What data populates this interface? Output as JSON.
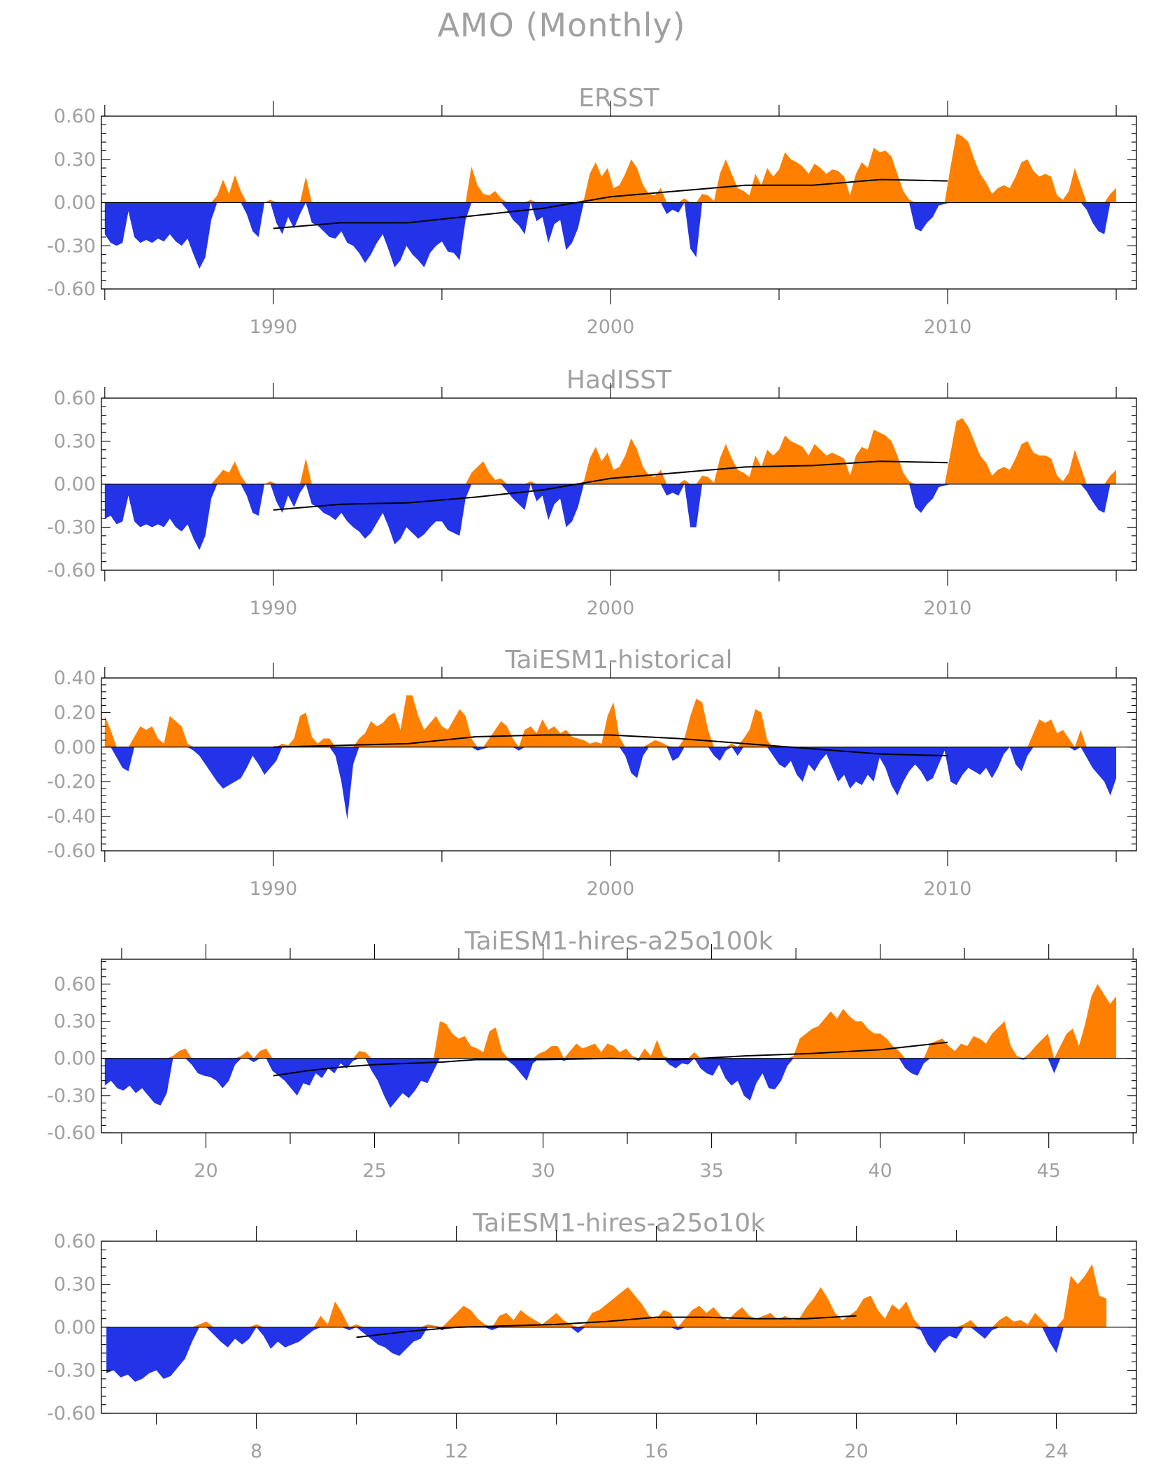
{
  "figure": {
    "title": "AMO (Monthly)",
    "positive_color": "#ff8000",
    "negative_color": "#2233e8",
    "trend_color": "#000000",
    "label_color": "#a0a0a0"
  },
  "chart_data": [
    {
      "type": "area",
      "title": "ERSST",
      "xlim": [
        1984.9,
        2015.6
      ],
      "ylim": [
        -0.6,
        0.6
      ],
      "yticks": [
        -0.6,
        -0.3,
        0.0,
        0.3,
        0.6
      ],
      "ytick_labels": [
        "-0.60",
        "-0.30",
        "0.00",
        "0.30",
        "0.60"
      ],
      "xticks": [
        1990,
        2000,
        2010
      ],
      "xtick_labels": [
        "1990",
        "2000",
        "2010"
      ],
      "x_start": 1985.0,
      "x_end": 2015.0,
      "values": [
        -0.22,
        -0.28,
        -0.3,
        -0.28,
        -0.06,
        -0.24,
        -0.28,
        -0.26,
        -0.28,
        -0.25,
        -0.27,
        -0.22,
        -0.27,
        -0.3,
        -0.25,
        -0.36,
        -0.46,
        -0.38,
        -0.12,
        0.05,
        0.16,
        0.06,
        0.19,
        0.08,
        -0.08,
        -0.2,
        -0.24,
        0.0,
        0.02,
        -0.14,
        -0.22,
        -0.1,
        -0.18,
        -0.08,
        0.18,
        -0.14,
        -0.16,
        -0.2,
        -0.24,
        -0.25,
        -0.2,
        -0.28,
        -0.3,
        -0.35,
        -0.42,
        -0.36,
        -0.28,
        -0.22,
        -0.33,
        -0.45,
        -0.4,
        -0.3,
        -0.36,
        -0.4,
        -0.45,
        -0.35,
        -0.3,
        -0.27,
        -0.34,
        -0.35,
        -0.4,
        -0.12,
        0.25,
        0.12,
        0.06,
        0.05,
        0.08,
        0.03,
        -0.05,
        -0.12,
        -0.16,
        -0.22,
        0.02,
        -0.13,
        -0.1,
        -0.28,
        -0.15,
        -0.12,
        -0.33,
        -0.28,
        -0.18,
        0.02,
        0.2,
        0.28,
        0.18,
        0.24,
        0.1,
        0.12,
        0.2,
        0.3,
        0.24,
        0.12,
        0.06,
        0.05,
        0.1,
        -0.08,
        -0.05,
        -0.07,
        0.03,
        -0.32,
        -0.38,
        0.06,
        0.05,
        0.01,
        0.2,
        0.3,
        0.2,
        0.1,
        0.08,
        0.05,
        0.2,
        0.12,
        0.24,
        0.18,
        0.23,
        0.35,
        0.3,
        0.28,
        0.25,
        0.2,
        0.27,
        0.24,
        0.2,
        0.23,
        0.22,
        0.18,
        0.05,
        0.2,
        0.28,
        0.24,
        0.38,
        0.35,
        0.36,
        0.32,
        0.2,
        0.08,
        0.02,
        -0.18,
        -0.2,
        -0.14,
        -0.1,
        -0.02,
        -0.01,
        0.25,
        0.48,
        0.46,
        0.42,
        0.3,
        0.2,
        0.14,
        0.06,
        0.1,
        0.12,
        0.1,
        0.18,
        0.28,
        0.3,
        0.22,
        0.18,
        0.2,
        0.18,
        0.05,
        0.02,
        0.08,
        0.24,
        0.12,
        -0.05,
        -0.14,
        -0.2,
        -0.22,
        0.06,
        0.1
      ],
      "trend": {
        "x": [
          1990,
          1992,
          1994,
          1996,
          1998,
          2000,
          2002,
          2004,
          2006,
          2008,
          2010
        ],
        "y": [
          -0.18,
          -0.14,
          -0.14,
          -0.09,
          -0.04,
          0.04,
          0.08,
          0.12,
          0.12,
          0.16,
          0.15
        ]
      }
    },
    {
      "type": "area",
      "title": "HadISST",
      "xlim": [
        1984.9,
        2015.6
      ],
      "ylim": [
        -0.6,
        0.6
      ],
      "yticks": [
        -0.6,
        -0.3,
        0.0,
        0.3,
        0.6
      ],
      "ytick_labels": [
        "-0.60",
        "-0.30",
        "0.00",
        "0.30",
        "0.60"
      ],
      "xticks": [
        1990,
        2000,
        2010
      ],
      "xtick_labels": [
        "1990",
        "2000",
        "2010"
      ],
      "x_start": 1985.0,
      "x_end": 2015.0,
      "values": [
        -0.24,
        -0.22,
        -0.28,
        -0.26,
        -0.08,
        -0.26,
        -0.3,
        -0.28,
        -0.3,
        -0.28,
        -0.3,
        -0.24,
        -0.3,
        -0.33,
        -0.28,
        -0.38,
        -0.46,
        -0.36,
        -0.1,
        0.05,
        0.1,
        0.08,
        0.16,
        0.06,
        -0.08,
        -0.2,
        -0.22,
        0.0,
        0.02,
        -0.12,
        -0.2,
        -0.08,
        -0.16,
        -0.06,
        0.18,
        -0.14,
        -0.16,
        -0.2,
        -0.22,
        -0.25,
        -0.2,
        -0.26,
        -0.3,
        -0.33,
        -0.38,
        -0.34,
        -0.27,
        -0.2,
        -0.3,
        -0.42,
        -0.38,
        -0.3,
        -0.34,
        -0.38,
        -0.35,
        -0.3,
        -0.26,
        -0.26,
        -0.32,
        -0.34,
        -0.36,
        -0.1,
        0.08,
        0.12,
        0.16,
        0.08,
        0.03,
        0.04,
        -0.05,
        -0.1,
        -0.14,
        -0.18,
        0.02,
        -0.12,
        -0.08,
        -0.25,
        -0.14,
        -0.1,
        -0.3,
        -0.26,
        -0.16,
        0.02,
        0.18,
        0.26,
        0.16,
        0.22,
        0.1,
        0.12,
        0.2,
        0.32,
        0.24,
        0.12,
        0.06,
        0.05,
        0.1,
        -0.08,
        -0.06,
        -0.08,
        0.03,
        -0.3,
        -0.3,
        0.06,
        0.05,
        0.01,
        0.18,
        0.28,
        0.18,
        0.1,
        0.08,
        0.05,
        0.2,
        0.12,
        0.24,
        0.2,
        0.24,
        0.34,
        0.3,
        0.28,
        0.26,
        0.2,
        0.28,
        0.24,
        0.2,
        0.22,
        0.2,
        0.18,
        0.06,
        0.2,
        0.26,
        0.24,
        0.38,
        0.36,
        0.34,
        0.3,
        0.2,
        0.08,
        0.02,
        -0.16,
        -0.2,
        -0.14,
        -0.1,
        -0.02,
        -0.01,
        0.22,
        0.44,
        0.46,
        0.4,
        0.3,
        0.2,
        0.15,
        0.06,
        0.1,
        0.12,
        0.1,
        0.18,
        0.28,
        0.3,
        0.22,
        0.2,
        0.2,
        0.18,
        0.06,
        0.02,
        0.08,
        0.24,
        0.12,
        -0.05,
        -0.12,
        -0.18,
        -0.2,
        0.06,
        0.1
      ],
      "trend": {
        "x": [
          1990,
          1992,
          1994,
          1996,
          1998,
          2000,
          2002,
          2004,
          2006,
          2008,
          2010
        ],
        "y": [
          -0.18,
          -0.14,
          -0.13,
          -0.09,
          -0.04,
          0.04,
          0.08,
          0.12,
          0.13,
          0.16,
          0.15
        ]
      }
    },
    {
      "type": "area",
      "title": "TaiESM1-historical",
      "xlim": [
        1984.9,
        2015.6
      ],
      "ylim": [
        -0.6,
        0.4
      ],
      "yticks": [
        -0.6,
        -0.4,
        -0.2,
        0.0,
        0.2,
        0.4
      ],
      "ytick_labels": [
        "-0.60",
        "-0.40",
        "-0.20",
        "0.00",
        "0.20",
        "0.40"
      ],
      "xticks": [
        1990,
        2000,
        2010
      ],
      "xtick_labels": [
        "1990",
        "2000",
        "2010"
      ],
      "x_start": 1985.0,
      "x_end": 2015.0,
      "values": [
        0.18,
        0.1,
        -0.06,
        -0.12,
        -0.14,
        0.06,
        0.12,
        0.1,
        0.12,
        0.05,
        0.02,
        0.18,
        0.15,
        0.12,
        0.02,
        -0.02,
        -0.05,
        -0.1,
        -0.15,
        -0.2,
        -0.24,
        -0.22,
        -0.2,
        -0.18,
        -0.12,
        -0.05,
        -0.1,
        -0.16,
        -0.12,
        -0.08,
        0.02,
        0.01,
        0.05,
        0.18,
        0.2,
        0.06,
        0.02,
        0.05,
        0.05,
        -0.05,
        -0.2,
        -0.42,
        -0.1,
        0.05,
        0.08,
        0.15,
        0.12,
        0.14,
        0.18,
        0.2,
        0.1,
        0.3,
        0.3,
        0.18,
        0.1,
        0.14,
        0.18,
        0.12,
        0.1,
        0.16,
        0.22,
        0.18,
        0.05,
        -0.02,
        -0.01,
        0.05,
        0.1,
        0.15,
        0.12,
        0.05,
        -0.02,
        0.1,
        0.12,
        0.08,
        0.16,
        0.1,
        0.12,
        0.08,
        0.1,
        0.06,
        0.05,
        0.04,
        0.02,
        0.03,
        0.02,
        0.18,
        0.26,
        0.06,
        -0.05,
        -0.15,
        -0.18,
        -0.05,
        0.02,
        0.04,
        0.03,
        0.01,
        -0.08,
        -0.06,
        0.05,
        0.18,
        0.28,
        0.26,
        0.1,
        -0.05,
        -0.08,
        -0.02,
        0.02,
        -0.05,
        0.05,
        0.1,
        0.22,
        0.2,
        0.04,
        -0.05,
        -0.1,
        -0.12,
        -0.08,
        -0.16,
        -0.2,
        -0.1,
        -0.14,
        -0.08,
        -0.04,
        -0.12,
        -0.2,
        -0.16,
        -0.24,
        -0.2,
        -0.22,
        -0.16,
        -0.2,
        -0.06,
        -0.12,
        -0.22,
        -0.28,
        -0.2,
        -0.14,
        -0.1,
        -0.14,
        -0.2,
        -0.18,
        -0.1,
        -0.02,
        -0.2,
        -0.22,
        -0.16,
        -0.12,
        -0.14,
        -0.16,
        -0.12,
        -0.18,
        -0.12,
        -0.04,
        0.0,
        -0.1,
        -0.14,
        -0.05,
        0.08,
        0.16,
        0.14,
        0.16,
        0.08,
        0.1,
        0.05,
        -0.02,
        0.1,
        -0.06,
        -0.12,
        -0.16,
        -0.2,
        -0.28,
        -0.18
      ],
      "trend": {
        "x": [
          1990,
          1992,
          1994,
          1996,
          1998,
          2000,
          2002,
          2004,
          2006,
          2008,
          2010
        ],
        "y": [
          0.0,
          0.01,
          0.02,
          0.06,
          0.07,
          0.07,
          0.05,
          0.02,
          -0.01,
          -0.04,
          -0.05
        ]
      }
    },
    {
      "type": "area",
      "title": "TaiESM1-hires-a25o100k",
      "xlim": [
        16.9,
        47.6
      ],
      "ylim": [
        -0.6,
        0.8
      ],
      "yticks": [
        -0.6,
        -0.3,
        0.0,
        0.3,
        0.6
      ],
      "ytick_labels": [
        "-0.60",
        "-0.30",
        "0.00",
        "0.30",
        "0.60"
      ],
      "xticks": [
        20,
        25,
        30,
        35,
        40,
        45
      ],
      "xtick_labels": [
        "20",
        "25",
        "30",
        "35",
        "40",
        "45"
      ],
      "x_start": 17.0,
      "x_end": 47.0,
      "values": [
        -0.22,
        -0.18,
        -0.24,
        -0.26,
        -0.22,
        -0.28,
        -0.24,
        -0.3,
        -0.36,
        -0.38,
        -0.28,
        0.02,
        0.06,
        0.08,
        -0.05,
        -0.12,
        -0.14,
        -0.15,
        -0.18,
        -0.24,
        -0.18,
        -0.05,
        0.02,
        0.06,
        -0.03,
        0.06,
        0.08,
        -0.1,
        -0.14,
        -0.18,
        -0.24,
        -0.3,
        -0.2,
        -0.22,
        -0.12,
        -0.16,
        -0.08,
        -0.12,
        -0.04,
        -0.08,
        -0.02,
        0.06,
        0.05,
        -0.1,
        -0.18,
        -0.3,
        -0.4,
        -0.34,
        -0.28,
        -0.32,
        -0.26,
        -0.18,
        -0.2,
        -0.1,
        0.3,
        0.28,
        0.2,
        0.16,
        0.18,
        0.1,
        0.08,
        0.05,
        0.22,
        0.25,
        0.06,
        -0.02,
        -0.06,
        -0.12,
        -0.18,
        -0.04,
        0.04,
        0.06,
        0.1,
        0.1,
        -0.02,
        0.06,
        0.12,
        0.08,
        0.1,
        0.12,
        0.05,
        0.12,
        0.1,
        0.05,
        0.08,
        0.02,
        -0.02,
        0.08,
        0.02,
        0.15,
        0.02,
        -0.05,
        -0.08,
        -0.04,
        -0.05,
        0.05,
        -0.08,
        -0.12,
        -0.14,
        -0.05,
        -0.16,
        -0.22,
        -0.18,
        -0.3,
        -0.34,
        -0.2,
        -0.12,
        -0.24,
        -0.25,
        -0.18,
        -0.06,
        0.02,
        0.16,
        0.2,
        0.24,
        0.26,
        0.32,
        0.38,
        0.32,
        0.4,
        0.34,
        0.3,
        0.3,
        0.24,
        0.2,
        0.2,
        0.16,
        0.1,
        0.06,
        -0.08,
        -0.12,
        -0.14,
        -0.04,
        0.12,
        0.14,
        0.16,
        0.1,
        0.06,
        0.12,
        0.1,
        0.18,
        0.16,
        0.12,
        0.2,
        0.25,
        0.3,
        0.1,
        0.02,
        -0.01,
        0.04,
        0.1,
        0.15,
        0.2,
        -0.12,
        0.1,
        0.2,
        0.24,
        0.1,
        0.28,
        0.5,
        0.6,
        0.52,
        0.44,
        0.5
      ],
      "trend": {
        "x": [
          22,
          23,
          24,
          25,
          26,
          27,
          28,
          30,
          32,
          34,
          36,
          38,
          40,
          42
        ],
        "y": [
          -0.14,
          -0.1,
          -0.07,
          -0.05,
          -0.04,
          -0.03,
          -0.01,
          -0.01,
          0.0,
          -0.01,
          0.02,
          0.04,
          0.07,
          0.13
        ]
      }
    },
    {
      "type": "area",
      "title": "TaiESM1-hires-a25o10k",
      "xlim": [
        4.9,
        25.6
      ],
      "ylim": [
        -0.6,
        0.6
      ],
      "yticks": [
        -0.6,
        -0.3,
        0.0,
        0.3,
        0.6
      ],
      "ytick_labels": [
        "-0.60",
        "-0.30",
        "0.00",
        "0.30",
        "0.60"
      ],
      "xticks": [
        8,
        12,
        16,
        20,
        24
      ],
      "xtick_labels": [
        "8",
        "12",
        "16",
        "20",
        "24"
      ],
      "x_start": 5.0,
      "x_end": 25.0,
      "values": [
        -0.32,
        -0.3,
        -0.35,
        -0.33,
        -0.38,
        -0.36,
        -0.32,
        -0.3,
        -0.36,
        -0.34,
        -0.28,
        -0.22,
        -0.1,
        0.02,
        0.04,
        -0.05,
        -0.1,
        -0.14,
        -0.08,
        -0.12,
        -0.08,
        0.02,
        -0.06,
        -0.15,
        -0.1,
        -0.14,
        -0.12,
        -0.1,
        -0.06,
        -0.02,
        0.08,
        0.02,
        0.18,
        0.1,
        -0.02,
        0.02,
        -0.04,
        -0.08,
        -0.12,
        -0.14,
        -0.18,
        -0.2,
        -0.15,
        -0.1,
        -0.08,
        0.02,
        0.01,
        -0.02,
        0.05,
        0.1,
        0.15,
        0.12,
        0.06,
        0.02,
        -0.02,
        0.08,
        0.1,
        0.05,
        0.12,
        0.08,
        0.05,
        0.02,
        0.06,
        0.1,
        0.05,
        0.02,
        -0.04,
        0.02,
        0.1,
        0.12,
        0.16,
        0.2,
        0.24,
        0.28,
        0.22,
        0.16,
        0.08,
        0.06,
        0.12,
        0.1,
        -0.02,
        0.06,
        0.12,
        0.15,
        0.1,
        0.14,
        0.08,
        0.05,
        0.1,
        0.14,
        0.08,
        0.06,
        0.08,
        0.1,
        0.05,
        0.08,
        0.05,
        0.06,
        0.14,
        0.2,
        0.28,
        0.2,
        0.1,
        0.05,
        0.08,
        0.12,
        0.2,
        0.22,
        0.12,
        0.06,
        0.16,
        0.12,
        0.18,
        0.06,
        -0.02,
        -0.12,
        -0.18,
        -0.1,
        -0.06,
        -0.08,
        0.02,
        0.05,
        -0.04,
        -0.08,
        -0.02,
        0.05,
        0.08,
        0.04,
        0.05,
        0.02,
        0.1,
        0.05,
        -0.1,
        -0.18,
        0.06,
        0.36,
        0.3,
        0.36,
        0.44,
        0.22,
        0.2
      ],
      "trend": {
        "x": [
          10,
          11,
          12,
          13,
          14,
          15,
          16,
          17,
          18,
          19,
          20
        ],
        "y": [
          -0.07,
          -0.03,
          0.0,
          0.01,
          0.02,
          0.04,
          0.07,
          0.07,
          0.06,
          0.06,
          0.08
        ]
      }
    }
  ]
}
